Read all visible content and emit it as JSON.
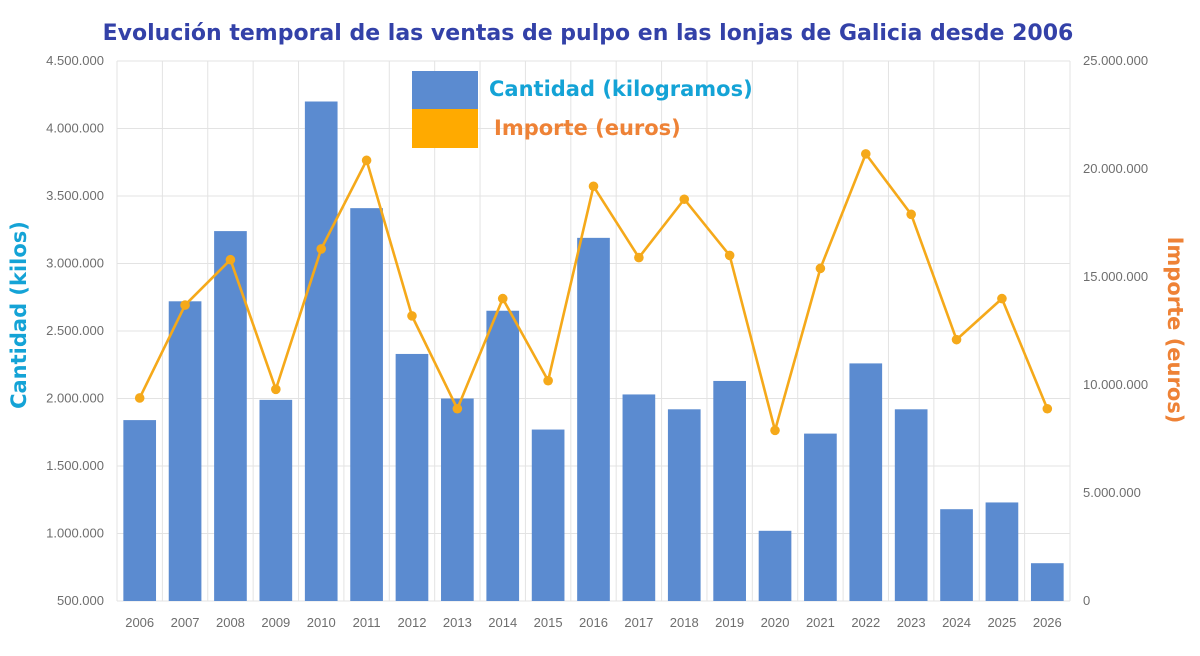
{
  "colors": {
    "title": "#3341a8",
    "bar": "#5b8bd0",
    "line": "#f5a91a",
    "legend_line_swatch": "#ffaa00",
    "left_axis_title": "#14a3d6",
    "right_axis_title": "#ee8236",
    "grid": "#e3e3e3",
    "tick_text": "#6e6e6e"
  },
  "chart_data": {
    "type": "bar",
    "title": "Evolución temporal de las ventas de pulpo en las lonjas de Galicia desde 2006",
    "categories": [
      "2006",
      "2007",
      "2008",
      "2009",
      "2010",
      "2011",
      "2012",
      "2013",
      "2014",
      "2015",
      "2016",
      "2017",
      "2018",
      "2019",
      "2020",
      "2021",
      "2022",
      "2023",
      "2024",
      "2025",
      "2026"
    ],
    "series": [
      {
        "name": "Cantidad (kilogramos)",
        "type": "bar",
        "axis": "left",
        "values": [
          1840000,
          2720000,
          3240000,
          1990000,
          4200000,
          3410000,
          2330000,
          2000000,
          2650000,
          1770000,
          3190000,
          2030000,
          1920000,
          2130000,
          1020000,
          1740000,
          2260000,
          1920000,
          1180000,
          1230000,
          780000
        ]
      },
      {
        "name": "Importe (euros)",
        "type": "line",
        "axis": "right",
        "values": [
          9400000,
          13700000,
          15800000,
          9800000,
          16300000,
          20400000,
          13200000,
          8900000,
          14000000,
          10200000,
          19200000,
          15900000,
          18600000,
          16000000,
          7900000,
          15400000,
          20700000,
          17900000,
          12100000,
          14000000,
          8900000
        ]
      }
    ],
    "ylabel": "Cantidad (kilos)",
    "y2label": "Importe (euros)",
    "ylim": [
      500000,
      4500000
    ],
    "y2lim": [
      0,
      25000000
    ],
    "yticks": [
      500000,
      1000000,
      1500000,
      2000000,
      2500000,
      3000000,
      3500000,
      4000000,
      4500000
    ],
    "yticklabels": [
      "500.000",
      "1.000.000",
      "1.500.000",
      "2.000.000",
      "2.500.000",
      "3.000.000",
      "3.500.000",
      "4.000.000",
      "4.500.000"
    ],
    "y2ticks": [
      0,
      5000000,
      10000000,
      15000000,
      20000000,
      25000000
    ],
    "y2ticklabels": [
      "0",
      "5.000.000",
      "10.000.000",
      "15.000.000",
      "20.000.000",
      "25.000.000"
    ],
    "grid": true,
    "legend_position": "top-center"
  }
}
